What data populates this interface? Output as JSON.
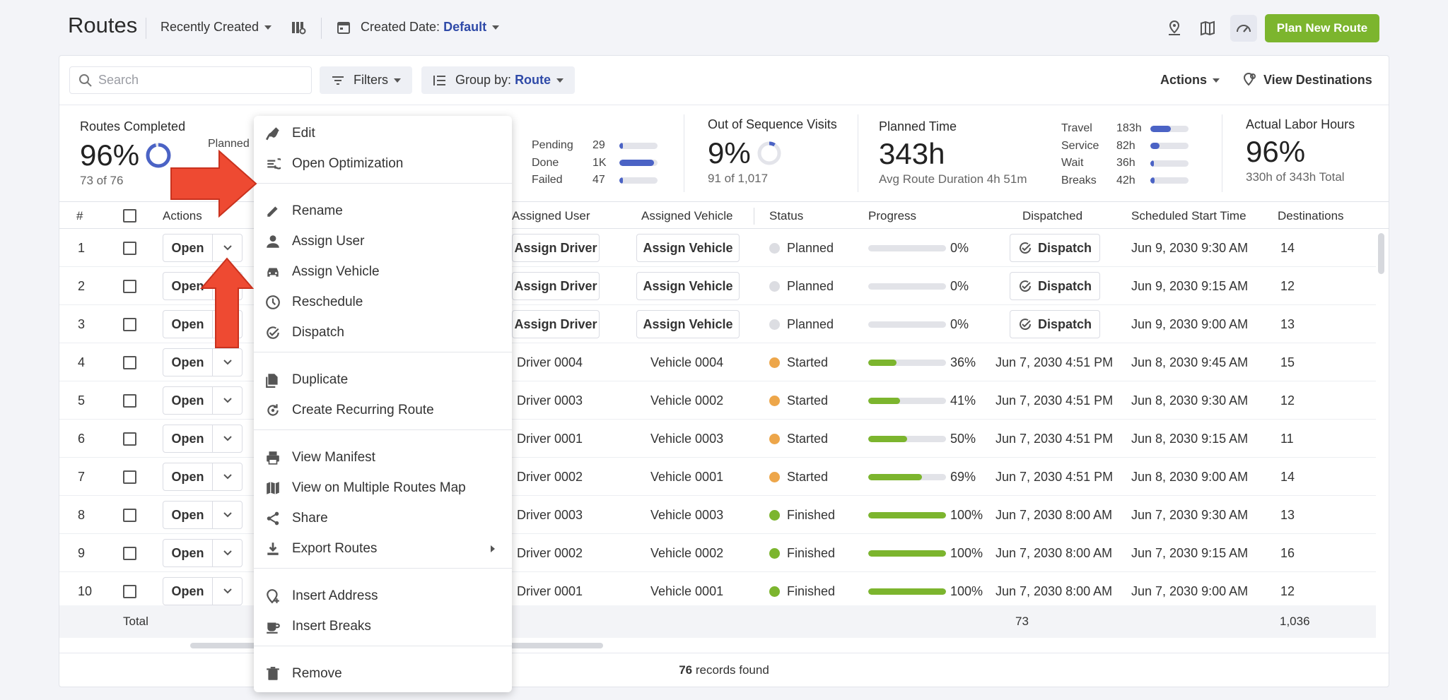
{
  "header": {
    "title": "Routes",
    "sort_label": "Recently Created",
    "date_prefix": "Created Date:",
    "date_value": "Default",
    "plan_button": "Plan New Route"
  },
  "toolbar": {
    "search_placeholder": "Search",
    "filters_label": "Filters",
    "group_prefix": "Group by:",
    "group_value": "Route",
    "actions_label": "Actions",
    "view_destinations": "View Destinations"
  },
  "stats": {
    "routes_completed": {
      "title": "Routes Completed",
      "value": "96%",
      "sub": "73 of 76",
      "partial_label": "Planned",
      "ring_fraction": 0.96
    },
    "destinations": {
      "rows": [
        {
          "label": "Pending",
          "value": "29",
          "fraction": 0.1
        },
        {
          "label": "Done",
          "value": "1K",
          "fraction": 0.9
        },
        {
          "label": "Failed",
          "value": "47",
          "fraction": 0.1
        }
      ]
    },
    "out_of_sequence": {
      "title": "Out of Sequence Visits",
      "value": "9%",
      "sub": "91 of 1,017",
      "ring_fraction": 0.09
    },
    "planned_time": {
      "title": "Planned Time",
      "value": "343h",
      "sub": "Avg Route Duration 4h 51m",
      "rows": [
        {
          "label": "Travel",
          "value": "183h",
          "fraction": 0.53
        },
        {
          "label": "Service",
          "value": "82h",
          "fraction": 0.24
        },
        {
          "label": "Wait",
          "value": "36h",
          "fraction": 0.1
        },
        {
          "label": "Breaks",
          "value": "42h",
          "fraction": 0.12
        }
      ]
    },
    "actual_labor": {
      "title": "Actual Labor Hours",
      "value": "96%",
      "sub": "330h of 343h Total"
    }
  },
  "table": {
    "headers": {
      "num": "#",
      "actions": "Actions",
      "user": "Assigned User",
      "vehicle": "Assigned Vehicle",
      "status": "Status",
      "progress": "Progress",
      "dispatched": "Dispatched",
      "start": "Scheduled Start Time",
      "destinations": "Destinations"
    },
    "open_label": "Open",
    "assign_driver": "Assign Driver",
    "assign_vehicle": "Assign Vehicle",
    "dispatch_label": "Dispatch",
    "rows": [
      {
        "num": "1",
        "user": "",
        "vehicle": "",
        "status": "Planned",
        "progress": 0,
        "progress_text": "0%",
        "dispatched": "",
        "start": "Jun 9, 2030 9:30 AM",
        "destinations": "14"
      },
      {
        "num": "2",
        "user": "",
        "vehicle": "",
        "status": "Planned",
        "progress": 0,
        "progress_text": "0%",
        "dispatched": "",
        "start": "Jun 9, 2030 9:15 AM",
        "destinations": "12"
      },
      {
        "num": "3",
        "user": "",
        "vehicle": "",
        "status": "Planned",
        "progress": 0,
        "progress_text": "0%",
        "dispatched": "",
        "start": "Jun 9, 2030 9:00 AM",
        "destinations": "13"
      },
      {
        "num": "4",
        "user": "Driver 0004",
        "vehicle": "Vehicle 0004",
        "status": "Started",
        "progress": 0.36,
        "progress_text": "36%",
        "dispatched": "Jun 7, 2030 4:51 PM",
        "start": "Jun 8, 2030 9:45 AM",
        "destinations": "15"
      },
      {
        "num": "5",
        "user": "Driver 0003",
        "vehicle": "Vehicle 0002",
        "status": "Started",
        "progress": 0.41,
        "progress_text": "41%",
        "dispatched": "Jun 7, 2030 4:51 PM",
        "start": "Jun 8, 2030 9:30 AM",
        "destinations": "12"
      },
      {
        "num": "6",
        "user": "Driver 0001",
        "vehicle": "Vehicle 0003",
        "status": "Started",
        "progress": 0.5,
        "progress_text": "50%",
        "dispatched": "Jun 7, 2030 4:51 PM",
        "start": "Jun 8, 2030 9:15 AM",
        "destinations": "11"
      },
      {
        "num": "7",
        "user": "Driver 0002",
        "vehicle": "Vehicle 0001",
        "status": "Started",
        "progress": 0.69,
        "progress_text": "69%",
        "dispatched": "Jun 7, 2030 4:51 PM",
        "start": "Jun 8, 2030 9:00 AM",
        "destinations": "14"
      },
      {
        "num": "8",
        "user": "Driver 0003",
        "vehicle": "Vehicle 0003",
        "status": "Finished",
        "progress": 1,
        "progress_text": "100%",
        "dispatched": "Jun 7, 2030 8:00 AM",
        "start": "Jun 7, 2030 9:30 AM",
        "destinations": "13"
      },
      {
        "num": "9",
        "user": "Driver 0002",
        "vehicle": "Vehicle 0002",
        "status": "Finished",
        "progress": 1,
        "progress_text": "100%",
        "dispatched": "Jun 7, 2030 8:00 AM",
        "start": "Jun 7, 2030 9:15 AM",
        "destinations": "16"
      },
      {
        "num": "10",
        "user": "Driver 0001",
        "vehicle": "Vehicle 0001",
        "status": "Finished",
        "progress": 1,
        "progress_text": "100%",
        "dispatched": "Jun 7, 2030 8:00 AM",
        "start": "Jun 7, 2030 9:00 AM",
        "destinations": "12"
      }
    ],
    "total_label": "Total",
    "total_dispatched": "73",
    "total_destinations": "1,036",
    "records_count": "76",
    "records_suffix": "records found"
  },
  "status_colors": {
    "Planned": "#dcdde2",
    "Started": "#eda64a",
    "Finished": "#7cb52e"
  },
  "context_menu": {
    "groups": [
      [
        {
          "label": "Edit",
          "icon": "edit-route-icon"
        },
        {
          "label": "Open Optimization",
          "icon": "optimization-icon"
        }
      ],
      [
        {
          "label": "Rename",
          "icon": "pencil-icon"
        },
        {
          "label": "Assign User",
          "icon": "user-icon"
        },
        {
          "label": "Assign Vehicle",
          "icon": "car-icon"
        },
        {
          "label": "Reschedule",
          "icon": "clock-icon"
        },
        {
          "label": "Dispatch",
          "icon": "check-circle-icon"
        }
      ],
      [
        {
          "label": "Duplicate",
          "icon": "copy-icon"
        },
        {
          "label": "Create Recurring Route",
          "icon": "recurring-icon"
        }
      ],
      [
        {
          "label": "View Manifest",
          "icon": "print-icon"
        },
        {
          "label": "View on Multiple Routes Map",
          "icon": "map-icon"
        },
        {
          "label": "Share",
          "icon": "share-icon"
        },
        {
          "label": "Export Routes",
          "icon": "download-icon",
          "submenu": true
        }
      ],
      [
        {
          "label": "Insert Address",
          "icon": "add-location-icon"
        },
        {
          "label": "Insert Breaks",
          "icon": "coffee-icon"
        }
      ],
      [
        {
          "label": "Remove",
          "icon": "trash-icon"
        }
      ]
    ]
  }
}
